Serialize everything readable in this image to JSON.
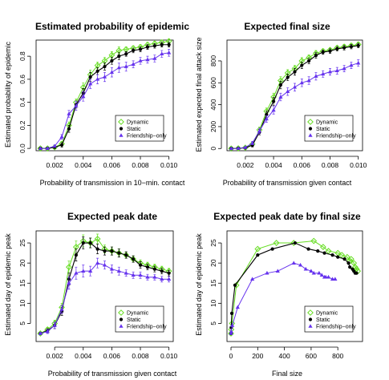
{
  "colors": {
    "Dynamic": "#66dd22",
    "Static": "#000000",
    "Friendship-only": "#6633ee"
  },
  "chart_data": [
    {
      "type": "line",
      "title": "Estimated probability of epidemic",
      "xlabel": "Probability of transmission in 10−min. contact",
      "ylabel": "Estimated probability of epidemic",
      "xlim": [
        0.0007,
        0.0103
      ],
      "ylim": [
        -0.02,
        0.94
      ],
      "xticks": [
        0.002,
        0.004,
        0.006,
        0.008,
        0.01
      ],
      "xtick_labels": [
        "0.002",
        "0.004",
        "0.006",
        "0.008",
        "0.010"
      ],
      "yticks": [
        0,
        0.2,
        0.4,
        0.6,
        0.8
      ],
      "ytick_labels": [
        "0.0",
        "0.2",
        "0.4",
        "0.6",
        "0.8"
      ],
      "legend": [
        "Dynamic",
        "Static",
        "Friendship−only"
      ],
      "legend_position": "bottom-right",
      "x": [
        0.001,
        0.0015,
        0.002,
        0.0025,
        0.003,
        0.0035,
        0.004,
        0.0045,
        0.005,
        0.0055,
        0.006,
        0.0065,
        0.007,
        0.0075,
        0.008,
        0.0085,
        0.009,
        0.0095,
        0.01
      ],
      "series": [
        {
          "name": "Dynamic",
          "values": [
            0,
            0,
            0.01,
            0.04,
            0.2,
            0.4,
            0.53,
            0.64,
            0.72,
            0.76,
            0.81,
            0.85,
            0.86,
            0.87,
            0.88,
            0.9,
            0.91,
            0.92,
            0.93
          ],
          "err": [
            0,
            0,
            0.01,
            0.02,
            0.03,
            0.03,
            0.04,
            0.04,
            0.03,
            0.03,
            0.03,
            0.03,
            0.02,
            0.02,
            0.02,
            0.02,
            0.02,
            0.02,
            0.02
          ]
        },
        {
          "name": "Static",
          "values": [
            0,
            0,
            0.01,
            0.03,
            0.17,
            0.38,
            0.48,
            0.62,
            0.67,
            0.71,
            0.76,
            0.8,
            0.82,
            0.85,
            0.86,
            0.88,
            0.89,
            0.9,
            0.9
          ],
          "err": [
            0,
            0,
            0.01,
            0.02,
            0.03,
            0.03,
            0.04,
            0.04,
            0.03,
            0.03,
            0.03,
            0.03,
            0.02,
            0.02,
            0.02,
            0.02,
            0.02,
            0.02,
            0.02
          ]
        },
        {
          "name": "Friendship−only",
          "values": [
            0,
            0,
            0.02,
            0.1,
            0.3,
            0.37,
            0.45,
            0.56,
            0.6,
            0.62,
            0.66,
            0.7,
            0.71,
            0.73,
            0.76,
            0.77,
            0.78,
            0.82,
            0.83
          ],
          "err": [
            0,
            0,
            0.01,
            0.02,
            0.03,
            0.04,
            0.04,
            0.04,
            0.04,
            0.04,
            0.04,
            0.04,
            0.04,
            0.03,
            0.03,
            0.03,
            0.03,
            0.03,
            0.03
          ]
        }
      ]
    },
    {
      "type": "line",
      "title": "Expected final size",
      "xlabel": "Probability of transmission given contact",
      "ylabel": "Estimated expected final attack size",
      "xlim": [
        0.0007,
        0.0103
      ],
      "ylim": [
        -20,
        990
      ],
      "xticks": [
        0.002,
        0.004,
        0.006,
        0.008,
        0.01
      ],
      "xtick_labels": [
        "0.002",
        "0.004",
        "0.006",
        "0.008",
        "0.010"
      ],
      "yticks": [
        0,
        200,
        400,
        600,
        800
      ],
      "ytick_labels": [
        "0",
        "200",
        "400",
        "600",
        "800"
      ],
      "legend": [
        "Dynamic",
        "Static",
        "Friendship−only"
      ],
      "legend_position": "bottom-right",
      "x": [
        0.001,
        0.0015,
        0.002,
        0.0025,
        0.003,
        0.0035,
        0.004,
        0.0045,
        0.005,
        0.0055,
        0.006,
        0.0065,
        0.007,
        0.0075,
        0.008,
        0.0085,
        0.009,
        0.0095,
        0.01
      ],
      "series": [
        {
          "name": "Dynamic",
          "values": [
            0,
            2,
            8,
            40,
            170,
            340,
            470,
            620,
            690,
            730,
            800,
            830,
            870,
            890,
            900,
            920,
            930,
            940,
            950
          ],
          "err": [
            0,
            1,
            5,
            15,
            25,
            30,
            35,
            35,
            30,
            30,
            30,
            25,
            25,
            20,
            20,
            20,
            20,
            20,
            20
          ]
        },
        {
          "name": "Static",
          "values": [
            0,
            2,
            6,
            30,
            150,
            310,
            430,
            580,
            650,
            700,
            760,
            800,
            850,
            880,
            890,
            910,
            920,
            930,
            940
          ],
          "err": [
            0,
            1,
            5,
            15,
            25,
            30,
            35,
            35,
            30,
            30,
            30,
            25,
            25,
            20,
            20,
            20,
            20,
            20,
            20
          ]
        },
        {
          "name": "Friendship−only",
          "values": [
            0,
            2,
            10,
            50,
            160,
            270,
            350,
            470,
            520,
            560,
            600,
            620,
            660,
            680,
            700,
            710,
            730,
            760,
            780
          ],
          "err": [
            0,
            1,
            5,
            15,
            25,
            30,
            35,
            35,
            35,
            35,
            35,
            35,
            35,
            30,
            30,
            30,
            30,
            30,
            30
          ]
        }
      ]
    },
    {
      "type": "line",
      "title": "Expected peak date",
      "xlabel": "Probability of transmission given contact",
      "ylabel": "Estimated day of epidemic peak",
      "xlim": [
        0.0007,
        0.0103
      ],
      "ylim": [
        0.5,
        28
      ],
      "xticks": [
        0.002,
        0.004,
        0.006,
        0.008,
        0.01
      ],
      "xtick_labels": [
        "0.002",
        "0.004",
        "0.006",
        "0.008",
        "0.010"
      ],
      "yticks": [
        5,
        10,
        15,
        20,
        25
      ],
      "ytick_labels": [
        "5",
        "10",
        "15",
        "20",
        "25"
      ],
      "legend": [
        "Dynamic",
        "Static",
        "Friendship−only"
      ],
      "legend_position": "bottom-right",
      "x": [
        0.001,
        0.0015,
        0.002,
        0.0025,
        0.003,
        0.0035,
        0.004,
        0.0045,
        0.005,
        0.0055,
        0.006,
        0.0065,
        0.007,
        0.0075,
        0.008,
        0.0085,
        0.009,
        0.0095,
        0.01
      ],
      "series": [
        {
          "name": "Dynamic",
          "values": [
            2.5,
            3.5,
            5,
            9,
            19,
            24,
            25.5,
            25,
            26,
            23.5,
            23,
            22.5,
            22,
            21,
            20,
            19.5,
            19,
            18.5,
            18
          ],
          "err": [
            0.3,
            0.5,
            0.8,
            1,
            1.5,
            1.5,
            1.5,
            1.2,
            1.2,
            1,
            1,
            1,
            0.8,
            0.8,
            0.8,
            0.7,
            0.7,
            0.7,
            0.7
          ]
        },
        {
          "name": "Static",
          "values": [
            2.5,
            3.2,
            4.5,
            8,
            16,
            22,
            25,
            25,
            23.5,
            23,
            23,
            22.5,
            22,
            21,
            19.5,
            19,
            18.5,
            18,
            17.5
          ],
          "err": [
            0.3,
            0.5,
            0.8,
            1,
            1.5,
            1.5,
            1.5,
            1.2,
            1.2,
            1,
            1,
            1,
            0.8,
            0.8,
            0.8,
            0.7,
            0.7,
            0.7,
            0.7
          ]
        },
        {
          "name": "Friendship−only",
          "values": [
            2.5,
            3,
            4.5,
            8.5,
            15,
            17.5,
            18,
            18,
            20,
            19.5,
            18.5,
            18,
            17.5,
            17,
            17,
            16.5,
            16.5,
            16,
            16
          ],
          "err": [
            0.3,
            0.5,
            0.8,
            1,
            1.5,
            1.5,
            1.5,
            1.2,
            1.2,
            1,
            1,
            1,
            0.8,
            0.8,
            0.8,
            0.7,
            0.7,
            0.7,
            0.7
          ]
        }
      ]
    },
    {
      "type": "scatter",
      "title": "Expected peak date by final size",
      "xlabel": "Final size",
      "ylabel": "Estimated day of epidemic peak",
      "xlim": [
        -30,
        985
      ],
      "ylim": [
        0.5,
        28
      ],
      "xticks": [
        0,
        200,
        400,
        600,
        800
      ],
      "xtick_labels": [
        "0",
        "200",
        "400",
        "600",
        "800"
      ],
      "yticks": [
        5,
        10,
        15,
        20,
        25
      ],
      "ytick_labels": [
        "5",
        "10",
        "15",
        "20",
        "25"
      ],
      "legend": [
        "Dynamic",
        "Static",
        "Friendship−only"
      ],
      "legend_position": "bottom-right",
      "series": [
        {
          "name": "Dynamic",
          "x": [
            0,
            2,
            8,
            40,
            200,
            340,
            470,
            620,
            690,
            730,
            800,
            830,
            870,
            890,
            900,
            920,
            930,
            940,
            950
          ],
          "values": [
            2.5,
            3.5,
            5,
            14.5,
            23.5,
            25,
            25,
            25.5,
            24,
            23,
            22.5,
            22,
            21.5,
            20.5,
            21,
            20,
            19,
            18.5,
            18
          ]
        },
        {
          "name": "Static",
          "x": [
            0,
            2,
            6,
            30,
            200,
            310,
            480,
            580,
            650,
            700,
            760,
            800,
            850,
            880,
            890,
            910,
            920,
            930,
            940
          ],
          "values": [
            2.5,
            4,
            7.5,
            14.5,
            22,
            23.5,
            25,
            23.5,
            23,
            22.5,
            22,
            21.5,
            21,
            20,
            19,
            18.5,
            18,
            17.5,
            17.5
          ]
        },
        {
          "name": "Friendship−only",
          "x": [
            0,
            2,
            10,
            50,
            160,
            270,
            350,
            470,
            520,
            560,
            600,
            620,
            660,
            680,
            700,
            710,
            730,
            760,
            780
          ],
          "values": [
            2.5,
            3,
            4.5,
            9,
            16,
            17.5,
            18,
            20,
            19.5,
            18.5,
            18,
            17.5,
            17.5,
            17,
            16.5,
            16.5,
            16.5,
            16,
            16
          ]
        }
      ]
    }
  ]
}
